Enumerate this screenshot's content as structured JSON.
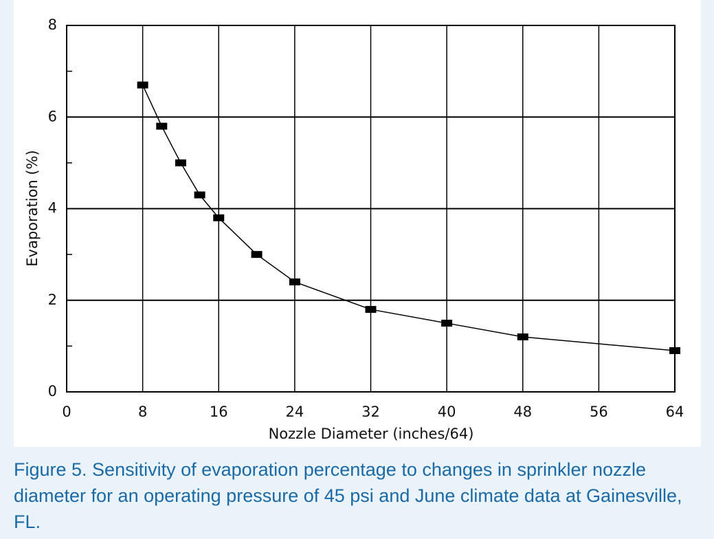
{
  "chart_data": {
    "type": "line",
    "caption": "Figure 5. Sensitivity of evaporation percentage to changes in sprinkler nozzle diameter for an operating pressure of 45 psi and June climate data at Gainesville, FL.",
    "xlabel": "Nozzle Diameter (inches/64)",
    "ylabel": "Evaporation (%)",
    "x": [
      8,
      10,
      12,
      14,
      16,
      20,
      24,
      32,
      40,
      48,
      64
    ],
    "values": [
      6.7,
      5.8,
      5.0,
      4.3,
      3.8,
      3.0,
      2.4,
      1.8,
      1.5,
      1.2,
      0.9
    ],
    "color": "#000000",
    "xlim": [
      0,
      64
    ],
    "xticks": [
      0,
      8,
      16,
      24,
      32,
      40,
      48,
      56,
      64
    ],
    "ylim": [
      0,
      8
    ],
    "yticks": [
      0,
      2,
      4,
      6,
      8
    ],
    "yminor_ticks": [
      1,
      3,
      5,
      7
    ],
    "grid": true
  }
}
